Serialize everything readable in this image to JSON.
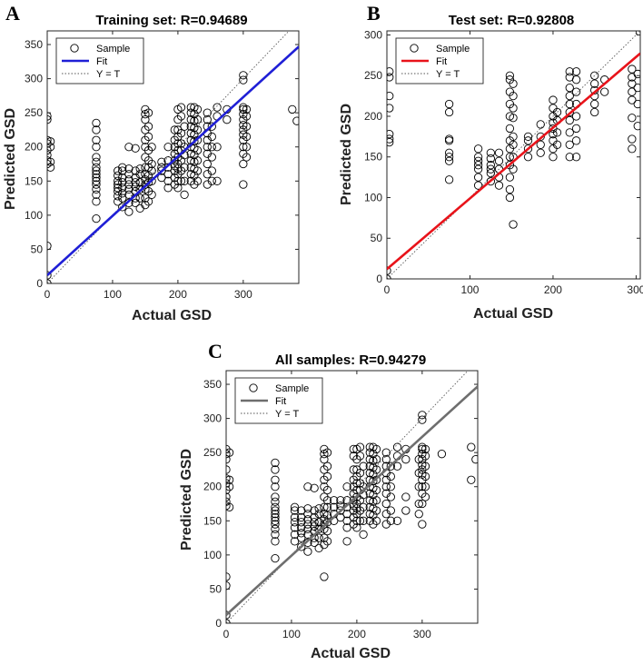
{
  "chart_data": [
    {
      "type": "scatter",
      "panel_letter": "A",
      "title": "Training set: R=0.94689",
      "xlabel": "Actual GSD",
      "ylabel": "Predicted GSD",
      "xlim": [
        0,
        385
      ],
      "ylim": [
        0,
        370
      ],
      "xticks": [
        0,
        100,
        200,
        300
      ],
      "yticks": [
        0,
        50,
        100,
        150,
        200,
        250,
        300,
        350
      ],
      "fit_color": "#1f1fd6",
      "fit_line": {
        "intercept": 12,
        "slope": 0.87
      },
      "legend": {
        "position": "top-left",
        "entries": [
          "Sample",
          "Fit",
          "Y = T"
        ]
      },
      "clusters": [
        {
          "x": 0,
          "y": [
            0,
            12,
            55,
            175,
            180,
            188,
            195,
            205,
            210,
            240,
            245
          ]
        },
        {
          "x": 5,
          "y": [
            170,
            178,
            200,
            208
          ]
        },
        {
          "x": 75,
          "y": [
            95,
            120,
            130,
            138,
            145,
            150,
            155,
            160,
            165,
            170,
            178,
            185,
            200,
            210,
            225,
            235
          ]
        },
        {
          "x": 108,
          "y": [
            120,
            128,
            135,
            140,
            145,
            150,
            158,
            165
          ]
        },
        {
          "x": 115,
          "y": [
            112,
            125,
            132,
            140,
            148,
            155,
            165,
            170
          ]
        },
        {
          "x": 125,
          "y": [
            105,
            118,
            130,
            138,
            145,
            152,
            160,
            168,
            200
          ]
        },
        {
          "x": 135,
          "y": [
            118,
            125,
            135,
            142,
            148,
            155,
            165,
            198
          ]
        },
        {
          "x": 142,
          "y": [
            110,
            125,
            138,
            148,
            160,
            168
          ]
        },
        {
          "x": 150,
          "y": [
            115,
            125,
            138,
            145,
            152,
            160,
            170,
            185,
            200,
            210,
            225,
            240,
            248,
            255
          ]
        },
        {
          "x": 155,
          "y": [
            120,
            135,
            148,
            158,
            170,
            180,
            195,
            215,
            230,
            250
          ]
        },
        {
          "x": 160,
          "y": [
            130,
            150,
            165,
            175,
            200
          ]
        },
        {
          "x": 175,
          "y": [
            155,
            165,
            170,
            178
          ]
        },
        {
          "x": 185,
          "y": [
            140,
            150,
            160,
            170,
            180,
            200
          ]
        },
        {
          "x": 195,
          "y": [
            145,
            155,
            165,
            172,
            180,
            190,
            200,
            210,
            225
          ]
        },
        {
          "x": 200,
          "y": [
            140,
            150,
            160,
            168,
            175,
            185,
            195,
            205,
            215,
            225,
            240,
            255
          ]
        },
        {
          "x": 205,
          "y": [
            150,
            165,
            180,
            195,
            205,
            220,
            245,
            258
          ]
        },
        {
          "x": 210,
          "y": [
            130,
            150,
            170,
            188,
            200,
            230
          ]
        },
        {
          "x": 220,
          "y": [
            150,
            160,
            170,
            180,
            190,
            200,
            210,
            220,
            230,
            240,
            250,
            258
          ]
        },
        {
          "x": 225,
          "y": [
            145,
            158,
            168,
            178,
            188,
            198,
            208,
            218,
            228,
            238,
            248,
            258
          ]
        },
        {
          "x": 230,
          "y": [
            150,
            165,
            180,
            195,
            210,
            225,
            240,
            255
          ]
        },
        {
          "x": 245,
          "y": [
            145,
            160,
            175,
            190,
            200,
            210,
            220,
            230,
            240,
            250
          ]
        },
        {
          "x": 252,
          "y": [
            150,
            165,
            185,
            200,
            215,
            230
          ]
        },
        {
          "x": 260,
          "y": [
            150,
            200,
            245,
            258
          ]
        },
        {
          "x": 275,
          "y": [
            240,
            255
          ]
        },
        {
          "x": 300,
          "y": [
            145,
            175,
            190,
            200,
            210,
            218,
            225,
            232,
            240,
            248,
            255,
            258,
            298,
            305
          ]
        },
        {
          "x": 305,
          "y": [
            185,
            200,
            215,
            230,
            245,
            255
          ]
        },
        {
          "x": 375,
          "y": [
            255
          ]
        },
        {
          "x": 382,
          "y": [
            238
          ]
        }
      ]
    },
    {
      "type": "scatter",
      "panel_letter": "B",
      "title": "Test set: R=0.92808",
      "xlabel": "Actual GSD",
      "ylabel": "Predicted GSD",
      "xlim": [
        0,
        305
      ],
      "ylim": [
        0,
        305
      ],
      "xticks": [
        0,
        100,
        200,
        300
      ],
      "yticks": [
        0,
        50,
        100,
        150,
        200,
        250,
        300
      ],
      "fit_color": "#e8131a",
      "fit_line": {
        "intercept": 12,
        "slope": 0.87
      },
      "legend": {
        "position": "top-left",
        "entries": [
          "Sample",
          "Fit",
          "Y = T"
        ]
      },
      "clusters": [
        {
          "x": 0,
          "y": [
            0,
            10
          ]
        },
        {
          "x": 3,
          "y": [
            168,
            172,
            178,
            210,
            225,
            248,
            255
          ]
        },
        {
          "x": 75,
          "y": [
            122,
            145,
            150,
            155,
            170,
            172,
            205,
            215
          ]
        },
        {
          "x": 110,
          "y": [
            115,
            125,
            135,
            140,
            145,
            150,
            160
          ]
        },
        {
          "x": 125,
          "y": [
            120,
            130,
            135,
            140,
            148,
            155
          ]
        },
        {
          "x": 135,
          "y": [
            115,
            125,
            135,
            145,
            155
          ]
        },
        {
          "x": 148,
          "y": [
            100,
            110,
            125,
            140,
            150,
            160,
            170,
            185,
            200,
            215,
            230,
            245,
            250
          ]
        },
        {
          "x": 152,
          "y": [
            67,
            135,
            150,
            165,
            175,
            198,
            210,
            225,
            240
          ]
        },
        {
          "x": 170,
          "y": [
            150,
            160,
            170,
            175
          ]
        },
        {
          "x": 185,
          "y": [
            155,
            165,
            175,
            190
          ]
        },
        {
          "x": 200,
          "y": [
            150,
            160,
            170,
            178,
            185,
            192,
            200,
            210,
            220
          ]
        },
        {
          "x": 205,
          "y": [
            165,
            180,
            195,
            205
          ]
        },
        {
          "x": 220,
          "y": [
            150,
            165,
            180,
            195,
            205,
            215,
            225,
            235,
            248,
            255
          ]
        },
        {
          "x": 228,
          "y": [
            150,
            170,
            185,
            200,
            215,
            230,
            245,
            255
          ]
        },
        {
          "x": 250,
          "y": [
            205,
            215,
            225,
            232,
            240,
            250
          ]
        },
        {
          "x": 262,
          "y": [
            230,
            245
          ]
        },
        {
          "x": 295,
          "y": [
            160,
            172,
            198,
            220,
            230,
            240,
            248,
            258
          ]
        },
        {
          "x": 302,
          "y": [
            188,
            215,
            235,
            252
          ]
        }
      ]
    },
    {
      "type": "scatter",
      "panel_letter": "C",
      "title": "All samples: R=0.94279",
      "xlabel": "Actual GSD",
      "ylabel": "Predicted GSD",
      "xlim": [
        0,
        385
      ],
      "ylim": [
        0,
        370
      ],
      "xticks": [
        0,
        100,
        200,
        300
      ],
      "yticks": [
        0,
        50,
        100,
        150,
        200,
        250,
        300,
        350
      ],
      "fit_color": "#6e6e6e",
      "fit_line": {
        "intercept": 12,
        "slope": 0.87
      },
      "legend": {
        "position": "top-left",
        "entries": [
          "Sample",
          "Fit",
          "Y = T"
        ]
      },
      "clusters": [
        {
          "x": 0,
          "y": [
            0,
            12,
            55,
            68,
            172,
            178,
            185,
            195,
            205,
            212,
            225,
            240,
            248,
            255
          ]
        },
        {
          "x": 5,
          "y": [
            170,
            200,
            210,
            250
          ]
        },
        {
          "x": 75,
          "y": [
            95,
            120,
            130,
            138,
            145,
            150,
            155,
            160,
            165,
            170,
            178,
            185,
            200,
            210,
            225,
            235
          ]
        },
        {
          "x": 105,
          "y": [
            120,
            130,
            140,
            148,
            155,
            165,
            170
          ]
        },
        {
          "x": 115,
          "y": [
            112,
            125,
            132,
            140,
            148,
            155,
            165
          ]
        },
        {
          "x": 125,
          "y": [
            105,
            118,
            130,
            138,
            145,
            152,
            160,
            168,
            200
          ]
        },
        {
          "x": 135,
          "y": [
            118,
            125,
            135,
            142,
            148,
            155,
            165,
            198
          ]
        },
        {
          "x": 142,
          "y": [
            110,
            125,
            138,
            148,
            160,
            168
          ]
        },
        {
          "x": 150,
          "y": [
            68,
            115,
            125,
            138,
            145,
            152,
            160,
            170,
            185,
            200,
            210,
            225,
            240,
            248,
            255
          ]
        },
        {
          "x": 155,
          "y": [
            120,
            135,
            148,
            158,
            170,
            180,
            195,
            215,
            230,
            250
          ]
        },
        {
          "x": 165,
          "y": [
            150,
            160,
            170,
            180
          ]
        },
        {
          "x": 175,
          "y": [
            155,
            165,
            172,
            180
          ]
        },
        {
          "x": 185,
          "y": [
            120,
            140,
            150,
            160,
            170,
            180,
            200
          ]
        },
        {
          "x": 195,
          "y": [
            145,
            155,
            165,
            172,
            180,
            190,
            200,
            210,
            225,
            245,
            255
          ]
        },
        {
          "x": 200,
          "y": [
            140,
            150,
            160,
            168,
            175,
            185,
            195,
            205,
            215,
            225,
            240,
            255
          ]
        },
        {
          "x": 205,
          "y": [
            150,
            165,
            180,
            195,
            205,
            220,
            245,
            258
          ]
        },
        {
          "x": 210,
          "y": [
            130,
            150,
            170,
            188,
            200,
            230
          ]
        },
        {
          "x": 220,
          "y": [
            150,
            160,
            170,
            180,
            190,
            200,
            210,
            220,
            230,
            240,
            250,
            258
          ]
        },
        {
          "x": 225,
          "y": [
            145,
            158,
            168,
            178,
            188,
            198,
            208,
            218,
            228,
            238,
            248,
            258
          ]
        },
        {
          "x": 230,
          "y": [
            150,
            165,
            180,
            195,
            210,
            225,
            240,
            255
          ]
        },
        {
          "x": 245,
          "y": [
            145,
            160,
            175,
            190,
            200,
            210,
            220,
            230,
            240,
            250
          ]
        },
        {
          "x": 252,
          "y": [
            150,
            165,
            185,
            200,
            215,
            230
          ]
        },
        {
          "x": 262,
          "y": [
            150,
            230,
            245,
            258
          ]
        },
        {
          "x": 275,
          "y": [
            165,
            185,
            240,
            255
          ]
        },
        {
          "x": 295,
          "y": [
            160,
            175,
            200,
            220,
            240
          ]
        },
        {
          "x": 300,
          "y": [
            145,
            175,
            190,
            200,
            210,
            218,
            225,
            232,
            240,
            248,
            255,
            258,
            298,
            305
          ]
        },
        {
          "x": 305,
          "y": [
            185,
            200,
            215,
            230,
            245,
            255
          ]
        },
        {
          "x": 330,
          "y": [
            248
          ]
        },
        {
          "x": 375,
          "y": [
            210,
            258
          ]
        },
        {
          "x": 382,
          "y": [
            240
          ]
        }
      ]
    }
  ]
}
